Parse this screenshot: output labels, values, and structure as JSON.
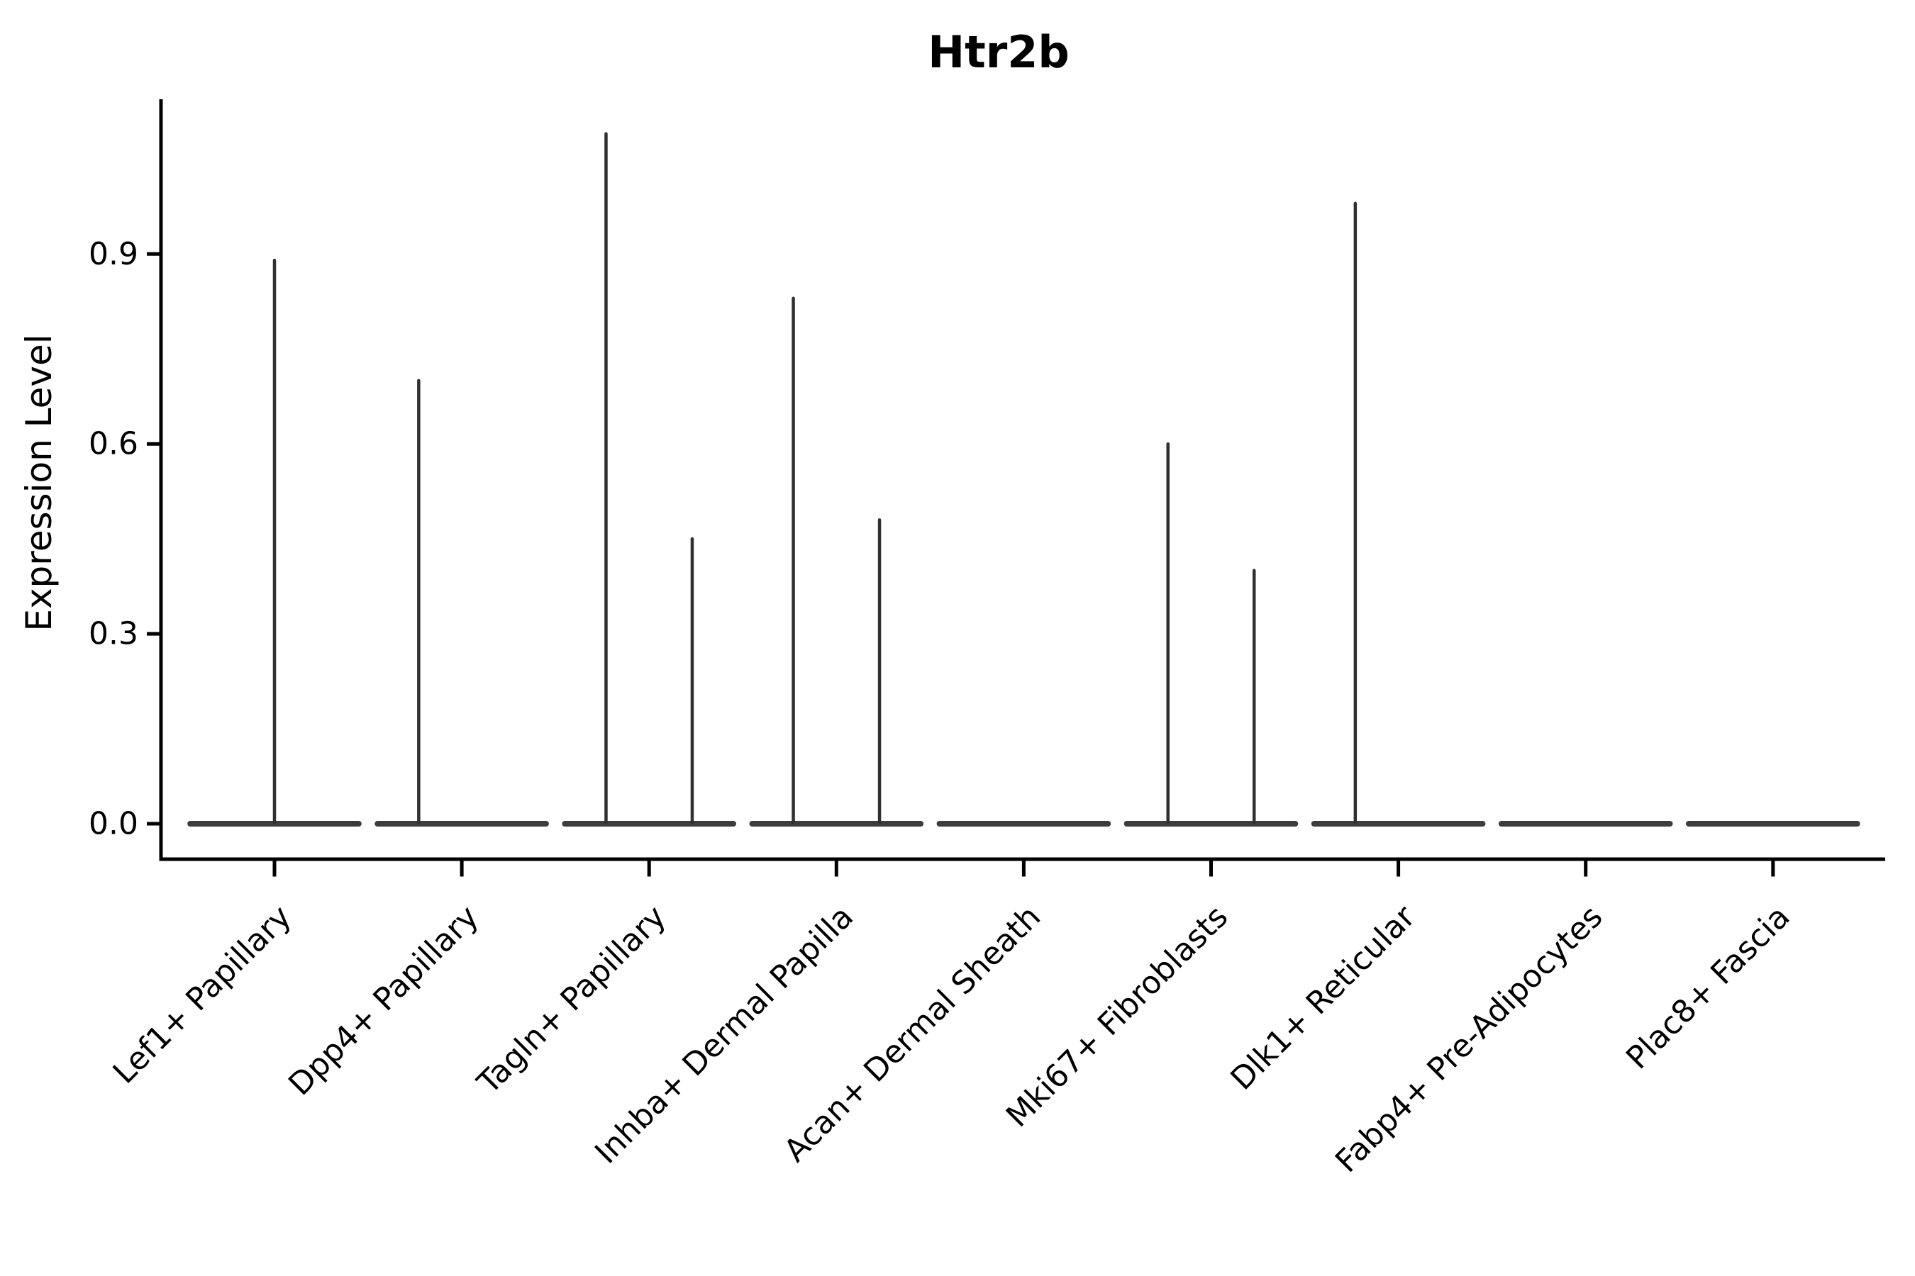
{
  "title": "Htr2b",
  "y_axis": {
    "label": "Expression Level",
    "tick_labels": [
      "0.0",
      "0.3",
      "0.6",
      "0.9"
    ]
  },
  "x_axis": {
    "label": "",
    "tick_labels": [
      "Lef1+ Papillary",
      "Dpp4+ Papillary",
      "Tagln+ Papillary",
      "Inhba+ Dermal Papilla",
      "Acan+ Dermal Sheath",
      "Mki67+ Fibroblasts",
      "Dlk1+ Reticular",
      "Fabp4+ Pre-Adipocytes",
      "Plac8+ Fascia"
    ]
  },
  "chart_data": {
    "type": "violin",
    "title": "Htr2b",
    "xlabel": "",
    "ylabel": "Expression Level",
    "yticks": [
      0.0,
      0.3,
      0.6,
      0.9
    ],
    "ylim": [
      -0.055,
      1.145
    ],
    "grid": false,
    "legend": "none",
    "categories": [
      "Lef1+ Papillary",
      "Dpp4+ Papillary",
      "Tagln+ Papillary",
      "Inhba+ Dermal Papilla",
      "Acan+ Dermal Sheath",
      "Mki67+ Fibroblasts",
      "Dlk1+ Reticular",
      "Fabp4+ Pre-Adipocytes",
      "Plac8+ Fascia"
    ],
    "violins": [
      {
        "category": "Lef1+ Papillary",
        "baseline_value": 0.0,
        "spikes": [
          {
            "offset": 0.0,
            "max": 0.89
          }
        ]
      },
      {
        "category": "Dpp4+ Papillary",
        "baseline_value": 0.0,
        "spikes": [
          {
            "offset": -0.23,
            "max": 0.7
          }
        ]
      },
      {
        "category": "Tagln+ Papillary",
        "baseline_value": 0.0,
        "spikes": [
          {
            "offset": -0.23,
            "max": 1.09
          },
          {
            "offset": 0.23,
            "max": 0.45
          }
        ]
      },
      {
        "category": "Inhba+ Dermal Papilla",
        "baseline_value": 0.0,
        "spikes": [
          {
            "offset": -0.23,
            "max": 0.83
          },
          {
            "offset": 0.23,
            "max": 0.48
          }
        ]
      },
      {
        "category": "Acan+ Dermal Sheath",
        "baseline_value": 0.0,
        "spikes": []
      },
      {
        "category": "Mki67+ Fibroblasts",
        "baseline_value": 0.0,
        "spikes": [
          {
            "offset": -0.23,
            "max": 0.6
          },
          {
            "offset": 0.23,
            "max": 0.4
          }
        ]
      },
      {
        "category": "Dlk1+ Reticular",
        "baseline_value": 0.0,
        "spikes": [
          {
            "offset": -0.23,
            "max": 0.98
          }
        ]
      },
      {
        "category": "Fabp4+ Pre-Adipocytes",
        "baseline_value": 0.0,
        "spikes": []
      },
      {
        "category": "Plac8+ Fascia",
        "baseline_value": 0.0,
        "spikes": []
      }
    ],
    "violin_halfwidth_fraction": 0.465,
    "colors": {
      "violin": "#3d3d3d",
      "spike": "#303030",
      "axis": "#000000",
      "text": "#000000",
      "background": "#ffffff"
    }
  }
}
